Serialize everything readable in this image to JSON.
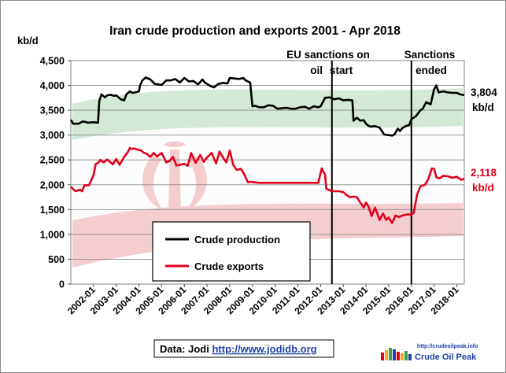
{
  "chart_data": {
    "type": "line",
    "title": "Iran crude production and exports  2001 -  Apr 2018",
    "ylabel": "kb/d",
    "ylim": [
      0,
      4500
    ],
    "y_ticks": [
      "0",
      "500",
      "1,000",
      "1,500",
      "2,000",
      "2,500",
      "3,000",
      "3,500",
      "4,000",
      "4,500"
    ],
    "y_tick_values": [
      0,
      500,
      1000,
      1500,
      2000,
      2500,
      3000,
      3500,
      4000,
      4500
    ],
    "x_tick_labels": [
      "2002-01",
      "2003-01",
      "2004-01",
      "2005-01",
      "2006-01",
      "2007-01",
      "2008-01",
      "2009-01",
      "2010-01",
      "2011-01",
      "2012-01",
      "2013-01",
      "2014-01",
      "2015-01",
      "2016-01",
      "2017-01",
      "2018-01"
    ],
    "x_range": [
      2001.0,
      2018.33
    ],
    "grid": true,
    "legend_position": "lower-left",
    "series": [
      {
        "name": "Crude production",
        "color": "#000000",
        "x": [
          2001.0,
          2001.1,
          2001.35,
          2001.5,
          2001.6,
          2001.75,
          2002.0,
          2002.2,
          2002.25,
          2002.35,
          2002.5,
          2002.6,
          2002.75,
          2002.9,
          2003.0,
          2003.2,
          2003.35,
          2003.45,
          2003.6,
          2003.7,
          2003.85,
          2004.0,
          2004.05,
          2004.15,
          2004.3,
          2004.5,
          2004.7,
          2004.85,
          2005.0,
          2005.2,
          2005.4,
          2005.6,
          2005.8,
          2006.0,
          2006.2,
          2006.4,
          2006.6,
          2006.8,
          2006.9,
          2007.1,
          2007.3,
          2007.5,
          2007.7,
          2007.9,
          2008.0,
          2008.2,
          2008.4,
          2008.6,
          2008.7,
          2008.9,
          2009.0,
          2009.1,
          2009.3,
          2009.5,
          2009.7,
          2009.9,
          2010.1,
          2010.3,
          2010.5,
          2010.7,
          2010.9,
          2011.1,
          2011.3,
          2011.5,
          2011.7,
          2011.9,
          2012.0,
          2012.2,
          2012.4,
          2012.6,
          2012.8,
          2013.0,
          2013.2,
          2013.4,
          2013.45,
          2013.6,
          2013.75,
          2013.9,
          2014.0,
          2014.1,
          2014.2,
          2014.4,
          2014.6,
          2014.8,
          2015.0,
          2015.15,
          2015.25,
          2015.4,
          2015.5,
          2015.6,
          2015.75,
          2015.9,
          2016.0,
          2016.1,
          2016.2,
          2016.4,
          2016.5,
          2016.65,
          2016.85,
          2017.0,
          2017.1,
          2017.2,
          2017.4,
          2017.6,
          2017.8,
          2018.0,
          2018.15,
          2018.33
        ],
        "values": [
          3310,
          3230,
          3230,
          3270,
          3270,
          3250,
          3260,
          3250,
          3680,
          3820,
          3760,
          3800,
          3810,
          3790,
          3800,
          3720,
          3700,
          3820,
          3880,
          3850,
          3860,
          3880,
          4000,
          4100,
          4160,
          4120,
          4030,
          4020,
          4010,
          4100,
          4100,
          4130,
          4060,
          4150,
          4080,
          4090,
          4020,
          4120,
          4060,
          4000,
          3960,
          4030,
          4050,
          4040,
          4150,
          4140,
          4130,
          4150,
          4100,
          4060,
          3580,
          3590,
          3560,
          3560,
          3600,
          3590,
          3530,
          3540,
          3550,
          3530,
          3530,
          3560,
          3570,
          3530,
          3580,
          3560,
          3580,
          3750,
          3760,
          3720,
          3740,
          3700,
          3710,
          3700,
          3290,
          3350,
          3290,
          3300,
          3230,
          3190,
          3170,
          3180,
          3150,
          3010,
          3000,
          2990,
          3010,
          3130,
          3080,
          3140,
          3180,
          3200,
          3320,
          3350,
          3380,
          3500,
          3530,
          3660,
          3620,
          3920,
          4000,
          3860,
          3880,
          3860,
          3850,
          3850,
          3820,
          3804
        ]
      },
      {
        "name": "Crude exports",
        "color": "#e3001b",
        "x": [
          2001.0,
          2001.2,
          2001.4,
          2001.5,
          2001.6,
          2001.8,
          2002.0,
          2002.1,
          2002.2,
          2002.3,
          2002.45,
          2002.6,
          2002.75,
          2002.85,
          2003.0,
          2003.15,
          2003.35,
          2003.5,
          2003.6,
          2003.7,
          2003.8,
          2004.0,
          2004.1,
          2004.2,
          2004.35,
          2004.5,
          2004.65,
          2004.8,
          2005.0,
          2005.1,
          2005.2,
          2005.35,
          2005.5,
          2005.65,
          2005.8,
          2006.0,
          2006.15,
          2006.3,
          2006.5,
          2006.7,
          2006.85,
          2007.0,
          2007.2,
          2007.4,
          2007.55,
          2007.7,
          2007.85,
          2008.0,
          2008.15,
          2008.3,
          2008.5,
          2008.65,
          2008.8,
          2008.95,
          2009.05,
          2009.3,
          2009.6,
          2009.9,
          2010.2,
          2010.5,
          2010.7,
          2011.0,
          2011.3,
          2011.6,
          2011.9,
          2012.05,
          2012.2,
          2012.25,
          2012.5,
          2012.8,
          2013.0,
          2013.15,
          2013.3,
          2013.45,
          2013.6,
          2013.75,
          2013.9,
          2014.0,
          2014.1,
          2014.25,
          2014.4,
          2014.6,
          2014.75,
          2014.9,
          2015.0,
          2015.15,
          2015.3,
          2015.45,
          2015.6,
          2015.8,
          2016.0,
          2016.1,
          2016.25,
          2016.4,
          2016.6,
          2016.75,
          2016.9,
          2017.0,
          2017.1,
          2017.25,
          2017.4,
          2017.6,
          2017.8,
          2018.0,
          2018.2,
          2018.33
        ],
        "values": [
          1960,
          1870,
          1900,
          1870,
          1990,
          1990,
          2200,
          2420,
          2440,
          2500,
          2450,
          2510,
          2450,
          2410,
          2520,
          2400,
          2560,
          2650,
          2740,
          2720,
          2730,
          2700,
          2690,
          2650,
          2620,
          2560,
          2640,
          2570,
          2640,
          2550,
          2450,
          2480,
          2560,
          2390,
          2400,
          2420,
          2380,
          2640,
          2440,
          2600,
          2460,
          2550,
          2640,
          2430,
          2670,
          2550,
          2450,
          2690,
          2400,
          2300,
          2320,
          2200,
          2050,
          2060,
          2050,
          2040,
          2040,
          2040,
          2040,
          2040,
          2040,
          2040,
          2040,
          2040,
          2040,
          2330,
          2200,
          1920,
          1870,
          1870,
          1850,
          1790,
          1750,
          1760,
          1750,
          1640,
          1540,
          1640,
          1570,
          1370,
          1540,
          1290,
          1420,
          1290,
          1340,
          1230,
          1380,
          1350,
          1380,
          1400,
          1400,
          1430,
          1800,
          1970,
          2000,
          2120,
          2330,
          2320,
          2150,
          2130,
          2180,
          2170,
          2140,
          2160,
          2100,
          2118
        ]
      }
    ],
    "annotations": {
      "eu_sanctions": {
        "x": 2012.5,
        "label_line1": "EU sanctions on",
        "label_line2_left": "oil",
        "label_line2_right": "start"
      },
      "sanctions_ended": {
        "x": 2016.0,
        "label_line1": "Sanctions",
        "label_line2": "ended"
      }
    },
    "end_labels": {
      "production": {
        "value": "3,804",
        "unit": "kb/d"
      },
      "exports": {
        "value": "2,118",
        "unit": "kb/d"
      }
    },
    "source": {
      "prefix": "Data: Jodi ",
      "link": "http://www.jodidb.org"
    }
  },
  "logo": {
    "url": "http://crudeoilpeak.info",
    "name": "Crude Oil Peak"
  },
  "colors": {
    "production": "#000000",
    "exports": "#e3001b",
    "link": "#1f3fa8",
    "green": "#3aa04a",
    "red": "#d21f2a"
  }
}
